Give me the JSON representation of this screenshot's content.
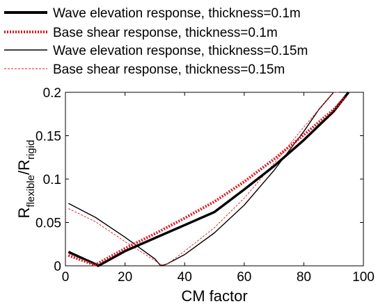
{
  "chart_data": {
    "type": "line",
    "xlabel": "CM factor",
    "ylabel": {
      "main_1": "R",
      "sub_1": "flexible",
      "slash": "/",
      "main_2": "R",
      "sub_2": "rigid"
    },
    "xlim": [
      0,
      100
    ],
    "ylim": [
      0,
      0.2
    ],
    "x_ticks": [
      "0",
      "20",
      "40",
      "60",
      "80",
      "100"
    ],
    "y_ticks": [
      "0",
      "0.05",
      "0.1",
      "0.15",
      "0.2"
    ],
    "grid": false,
    "legend_position": "above plot",
    "series": [
      {
        "name": "Wave elevation response, thickness=0.1m",
        "color": "#000000",
        "style": "solid-thick",
        "x": [
          1,
          10,
          11,
          20,
          30,
          40,
          50,
          60,
          70,
          80,
          90,
          95
        ],
        "y": [
          0.016,
          0.002,
          0.0,
          0.017,
          0.032,
          0.047,
          0.062,
          0.088,
          0.115,
          0.145,
          0.178,
          0.2
        ]
      },
      {
        "name": "Base shear response, thickness=0.1m",
        "color": "#e0141e",
        "style": "dotted-thick",
        "x": [
          1,
          10,
          20,
          30,
          40,
          50,
          60,
          70,
          80,
          90,
          94
        ],
        "y": [
          0.012,
          0.001,
          0.02,
          0.037,
          0.055,
          0.074,
          0.097,
          0.123,
          0.151,
          0.18,
          0.195
        ]
      },
      {
        "name": "Wave elevation response, thickness=0.15m",
        "color": "#000000",
        "style": "solid-thin",
        "x": [
          1,
          10,
          20,
          30,
          32,
          34,
          40,
          50,
          60,
          70,
          80,
          85,
          90
        ],
        "y": [
          0.072,
          0.056,
          0.033,
          0.008,
          0.0,
          0.002,
          0.013,
          0.038,
          0.07,
          0.11,
          0.155,
          0.18,
          0.2
        ]
      },
      {
        "name": "Base shear response, thickness=0.15m",
        "color": "#e0141e",
        "style": "dashed-thin",
        "x": [
          1,
          10,
          20,
          30,
          33,
          35,
          40,
          50,
          60,
          70,
          80,
          90,
          92
        ],
        "y": [
          0.066,
          0.051,
          0.028,
          0.006,
          0.0,
          0.004,
          0.017,
          0.044,
          0.078,
          0.118,
          0.16,
          0.2,
          0.2
        ]
      }
    ]
  }
}
